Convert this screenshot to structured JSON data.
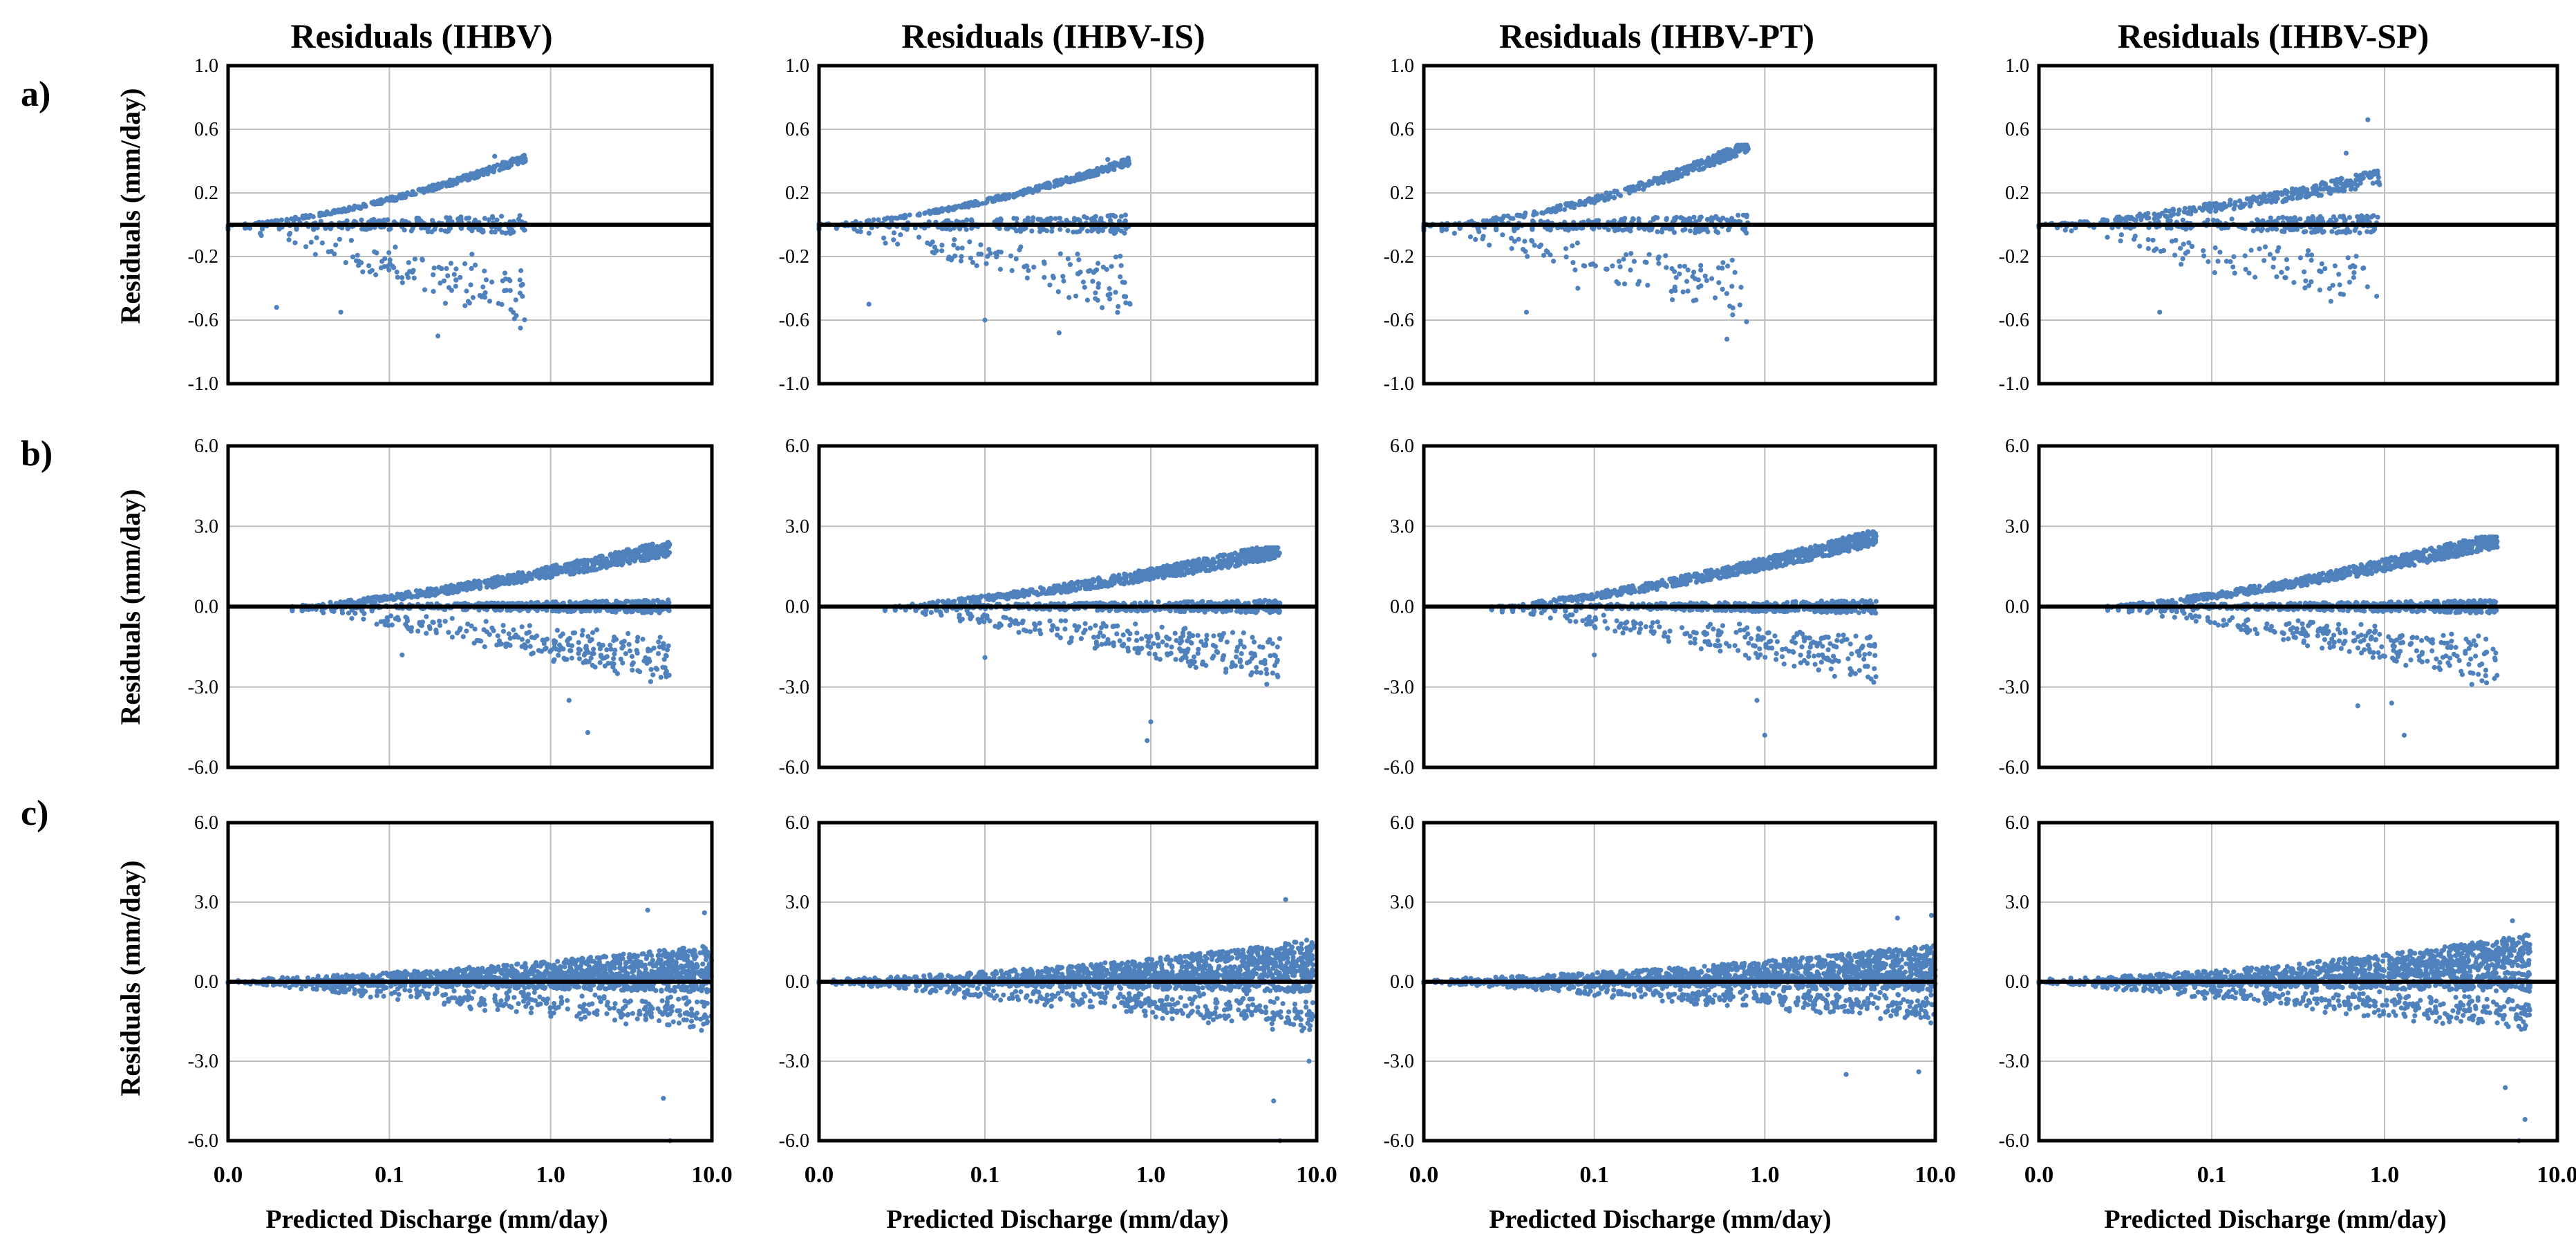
{
  "figure": {
    "row_labels": [
      "a)",
      "b)",
      "c)"
    ],
    "column_titles": [
      "Residuals (IHBV)",
      "Residuals (IHBV-IS)",
      "Residuals (IHBV-PT)",
      "Residuals (IHBV-SP)"
    ],
    "y_axis_label": "Residuals (mm/day)",
    "x_axis_label": "Predicted Discharge (mm/day)",
    "colors": {
      "points": "#4F81BD",
      "zero_line": "#000000",
      "grid": "#BFBFBF",
      "frame": "#000000"
    }
  },
  "chart_data": [
    {
      "type": "scatter",
      "row": "a)",
      "column": "Residuals (IHBV)",
      "x_scale": "log",
      "xlim": [
        0.01,
        10
      ],
      "ylim": [
        -1.0,
        1.0
      ],
      "yticks": [
        "1.0",
        "0.6",
        "0.2",
        "-0.2",
        "-0.6",
        "-1.0"
      ],
      "xticks": [],
      "y_axis_label": "Residuals (mm/day)",
      "x_axis_label": "",
      "seed": 1,
      "min_x": 0.01,
      "max_x": 0.7,
      "bias_max": 0.42,
      "bias_exp": 1.6,
      "down_amp": 0.35,
      "down_spread": 0.25,
      "up_spread": 0.04,
      "n": 650,
      "min_y": -0.7,
      "max_y": 0.44,
      "outliers": [
        [
          0.02,
          -0.52
        ],
        [
          0.05,
          -0.55
        ],
        [
          0.2,
          -0.7
        ],
        [
          0.65,
          -0.65
        ],
        [
          0.45,
          0.43
        ]
      ]
    },
    {
      "type": "scatter",
      "row": "a)",
      "column": "Residuals (IHBV-IS)",
      "x_scale": "log",
      "xlim": [
        0.01,
        10
      ],
      "ylim": [
        -1.0,
        1.0
      ],
      "yticks": [
        "1.0",
        "0.6",
        "0.2",
        "-0.2",
        "-0.6",
        "-1.0"
      ],
      "xticks": [],
      "y_axis_label": "",
      "x_axis_label": "",
      "seed": 2,
      "min_x": 0.01,
      "max_x": 0.75,
      "bias_max": 0.4,
      "bias_exp": 1.6,
      "down_amp": 0.3,
      "down_spread": 0.25,
      "up_spread": 0.04,
      "n": 650,
      "min_y": -0.68,
      "max_y": 0.42,
      "outliers": [
        [
          0.02,
          -0.5
        ],
        [
          0.1,
          -0.6
        ],
        [
          0.28,
          -0.68
        ],
        [
          0.75,
          -0.5
        ],
        [
          0.55,
          0.41
        ]
      ]
    },
    {
      "type": "scatter",
      "row": "a)",
      "column": "Residuals (IHBV-PT)",
      "x_scale": "log",
      "xlim": [
        0.01,
        10
      ],
      "ylim": [
        -1.0,
        1.0
      ],
      "yticks": [
        "1.0",
        "0.6",
        "0.2",
        "-0.2",
        "-0.6",
        "-1.0"
      ],
      "xticks": [],
      "y_axis_label": "",
      "x_axis_label": "",
      "seed": 3,
      "min_x": 0.01,
      "max_x": 0.8,
      "bias_max": 0.5,
      "bias_exp": 1.8,
      "down_amp": 0.35,
      "down_spread": 0.25,
      "up_spread": 0.06,
      "n": 650,
      "min_y": -0.72,
      "max_y": 0.5,
      "outliers": [
        [
          0.04,
          -0.55
        ],
        [
          0.6,
          -0.72
        ],
        [
          0.7,
          0.5
        ],
        [
          0.08,
          -0.4
        ]
      ]
    },
    {
      "type": "scatter",
      "row": "a)",
      "column": "Residuals (IHBV-SP)",
      "x_scale": "log",
      "xlim": [
        0.01,
        10
      ],
      "ylim": [
        -1.0,
        1.0
      ],
      "yticks": [
        "1.0",
        "0.6",
        "0.2",
        "-0.2",
        "-0.6",
        "-1.0"
      ],
      "xticks": [],
      "y_axis_label": "",
      "x_axis_label": "",
      "seed": 4,
      "min_x": 0.01,
      "max_x": 0.95,
      "bias_max": 0.3,
      "bias_exp": 1.5,
      "down_amp": 0.3,
      "down_spread": 0.25,
      "up_spread": 0.08,
      "n": 600,
      "min_y": -0.55,
      "max_y": 0.66,
      "outliers": [
        [
          0.05,
          -0.55
        ],
        [
          0.8,
          0.66
        ],
        [
          0.9,
          -0.45
        ],
        [
          0.6,
          0.45
        ]
      ]
    },
    {
      "type": "scatter",
      "row": "b)",
      "column": "Residuals (IHBV)",
      "x_scale": "log",
      "xlim": [
        0.01,
        10
      ],
      "ylim": [
        -6.0,
        6.0
      ],
      "yticks": [
        "6.0",
        "3.0",
        "0.0",
        "-3.0",
        "-6.0"
      ],
      "xticks": [],
      "y_axis_label": "Residuals (mm/day)",
      "x_axis_label": "",
      "seed": 5,
      "min_x": 0.025,
      "max_x": 5.5,
      "bias_max": 2.2,
      "bias_exp": 1.4,
      "down_amp": 1.6,
      "down_spread": 1.0,
      "up_spread": 0.5,
      "n": 1400,
      "min_y": -4.7,
      "max_y": 2.4,
      "outliers": [
        [
          1.3,
          -3.5
        ],
        [
          1.7,
          -4.7
        ],
        [
          4.5,
          -2.3
        ],
        [
          0.12,
          -1.8
        ]
      ]
    },
    {
      "type": "scatter",
      "row": "b)",
      "column": "Residuals (IHBV-IS)",
      "x_scale": "log",
      "xlim": [
        0.01,
        10
      ],
      "ylim": [
        -6.0,
        6.0
      ],
      "yticks": [
        "6.0",
        "3.0",
        "0.0",
        "-3.0",
        "-6.0"
      ],
      "xticks": [],
      "y_axis_label": "",
      "x_axis_label": "",
      "seed": 6,
      "min_x": 0.025,
      "max_x": 6.0,
      "bias_max": 2.1,
      "bias_exp": 1.4,
      "down_amp": 1.6,
      "down_spread": 1.0,
      "up_spread": 0.5,
      "n": 1400,
      "min_y": -5.0,
      "max_y": 2.2,
      "outliers": [
        [
          0.95,
          -5.0
        ],
        [
          1.0,
          -4.3
        ],
        [
          5.0,
          -2.5
        ],
        [
          0.1,
          -1.9
        ]
      ]
    },
    {
      "type": "scatter",
      "row": "b)",
      "column": "Residuals (IHBV-PT)",
      "x_scale": "log",
      "xlim": [
        0.01,
        10
      ],
      "ylim": [
        -6.0,
        6.0
      ],
      "yticks": [
        "6.0",
        "3.0",
        "0.0",
        "-3.0",
        "-6.0"
      ],
      "xticks": [],
      "y_axis_label": "",
      "x_axis_label": "",
      "seed": 7,
      "min_x": 0.025,
      "max_x": 4.5,
      "bias_max": 2.6,
      "bias_exp": 1.4,
      "down_amp": 1.6,
      "down_spread": 1.0,
      "up_spread": 0.5,
      "n": 1400,
      "min_y": -4.8,
      "max_y": 2.8,
      "outliers": [
        [
          1.0,
          -4.8
        ],
        [
          0.9,
          -3.5
        ],
        [
          4.2,
          -2.7
        ],
        [
          0.1,
          -1.8
        ]
      ]
    },
    {
      "type": "scatter",
      "row": "b)",
      "column": "Residuals (IHBV-SP)",
      "x_scale": "log",
      "xlim": [
        0.01,
        10
      ],
      "ylim": [
        -6.0,
        6.0
      ],
      "yticks": [
        "6.0",
        "3.0",
        "0.0",
        "-3.0",
        "-6.0"
      ],
      "xticks": [],
      "y_axis_label": "",
      "x_axis_label": "",
      "seed": 8,
      "min_x": 0.025,
      "max_x": 4.5,
      "bias_max": 2.5,
      "bias_exp": 1.4,
      "down_amp": 1.6,
      "down_spread": 1.0,
      "up_spread": 0.5,
      "n": 1400,
      "min_y": -4.8,
      "max_y": 2.6,
      "outliers": [
        [
          0.7,
          -3.7
        ],
        [
          1.1,
          -3.6
        ],
        [
          1.3,
          -4.8
        ],
        [
          3.2,
          -2.9
        ]
      ]
    },
    {
      "type": "scatter",
      "row": "c)",
      "column": "Residuals (IHBV)",
      "x_scale": "log",
      "xlim": [
        0.01,
        10
      ],
      "ylim": [
        -6.0,
        6.0
      ],
      "yticks": [
        "6.0",
        "3.0",
        "0.0",
        "-3.0",
        "-6.0"
      ],
      "xticks": [
        "0.0",
        "0.1",
        "1.0",
        "10.0"
      ],
      "y_axis_label": "Residuals (mm/day)",
      "x_axis_label": "Predicted Discharge (mm/day)",
      "seed": 9,
      "min_x": 0.01,
      "max_x": 10,
      "bias_max": 0.8,
      "bias_exp": 2.0,
      "down_amp": 0.8,
      "down_spread": 1.6,
      "up_spread": 1.0,
      "n": 1800,
      "min_y": -6.0,
      "max_y": 2.7,
      "outliers": [
        [
          5.5,
          -6.0
        ],
        [
          5.0,
          -4.4
        ],
        [
          9.0,
          2.6
        ],
        [
          4.0,
          2.7
        ]
      ]
    },
    {
      "type": "scatter",
      "row": "c)",
      "column": "Residuals (IHBV-IS)",
      "x_scale": "log",
      "xlim": [
        0.01,
        10
      ],
      "ylim": [
        -6.0,
        6.0
      ],
      "yticks": [
        "6.0",
        "3.0",
        "0.0",
        "-3.0",
        "-6.0"
      ],
      "xticks": [
        "0.0",
        "0.1",
        "1.0",
        "10.0"
      ],
      "y_axis_label": "",
      "x_axis_label": "Predicted Discharge (mm/day)",
      "seed": 10,
      "min_x": 0.01,
      "max_x": 9.5,
      "bias_max": 1.0,
      "bias_exp": 2.0,
      "down_amp": 0.8,
      "down_spread": 1.6,
      "up_spread": 1.0,
      "n": 1800,
      "min_y": -6.0,
      "max_y": 3.1,
      "outliers": [
        [
          6.0,
          -6.0
        ],
        [
          5.5,
          -4.5
        ],
        [
          6.5,
          3.1
        ],
        [
          9.0,
          -3.0
        ]
      ]
    },
    {
      "type": "scatter",
      "row": "c)",
      "column": "Residuals (IHBV-PT)",
      "x_scale": "log",
      "xlim": [
        0.01,
        10
      ],
      "ylim": [
        -6.0,
        6.0
      ],
      "yticks": [
        "6.0",
        "3.0",
        "0.0",
        "-3.0",
        "-6.0"
      ],
      "xticks": [
        "0.0",
        "0.1",
        "1.0",
        "10.0"
      ],
      "y_axis_label": "",
      "x_axis_label": "Predicted Discharge (mm/day)",
      "seed": 11,
      "min_x": 0.01,
      "max_x": 10,
      "bias_max": 0.8,
      "bias_exp": 2.0,
      "down_amp": 0.6,
      "down_spread": 1.4,
      "up_spread": 1.0,
      "n": 1800,
      "min_y": -3.6,
      "max_y": 2.5,
      "outliers": [
        [
          3.0,
          -3.5
        ],
        [
          8.0,
          -3.4
        ],
        [
          9.5,
          2.5
        ],
        [
          6.0,
          2.4
        ]
      ]
    },
    {
      "type": "scatter",
      "row": "c)",
      "column": "Residuals (IHBV-SP)",
      "x_scale": "log",
      "xlim": [
        0.01,
        10
      ],
      "ylim": [
        -6.0,
        6.0
      ],
      "yticks": [
        "6.0",
        "3.0",
        "0.0",
        "-3.0",
        "-6.0"
      ],
      "xticks": [
        "0.0",
        "0.1",
        "1.0",
        "10.0"
      ],
      "y_axis_label": "",
      "x_axis_label": "Predicted Discharge (mm/day)",
      "seed": 12,
      "min_x": 0.01,
      "max_x": 7.0,
      "bias_max": 1.2,
      "bias_exp": 2.0,
      "down_amp": 0.8,
      "down_spread": 1.5,
      "up_spread": 1.0,
      "n": 1800,
      "min_y": -6.0,
      "max_y": 2.3,
      "outliers": [
        [
          6.0,
          -6.0
        ],
        [
          6.5,
          -5.2
        ],
        [
          5.5,
          2.3
        ],
        [
          5.0,
          -4.0
        ]
      ]
    }
  ]
}
